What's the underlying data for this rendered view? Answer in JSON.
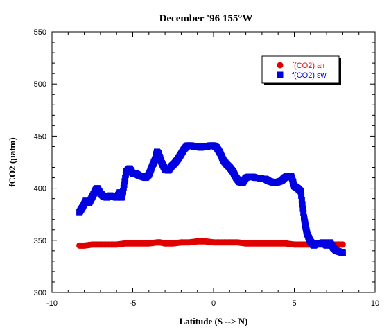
{
  "chart_data": {
    "type": "scatter",
    "title": "December '96 155°W",
    "xlabel": "Latitude (S --> N)",
    "ylabel": "fCO2 (µatm)",
    "xlim": [
      -10,
      10
    ],
    "ylim": [
      300,
      550
    ],
    "xticks": [
      "-10",
      "-5",
      "0",
      "5",
      "10"
    ],
    "yticks": [
      "300",
      "350",
      "400",
      "450",
      "500",
      "550"
    ],
    "legend_position": "top-right",
    "grid": false,
    "series": [
      {
        "name": "f(CO2) air",
        "marker": "circle",
        "color": "#e00000",
        "x": [
          -8.3,
          -8.0,
          -7.5,
          -7.0,
          -6.5,
          -6.0,
          -5.5,
          -5.0,
          -4.5,
          -4.0,
          -3.5,
          -3.3,
          -3.0,
          -2.5,
          -2.0,
          -1.5,
          -1.0,
          -0.5,
          0.0,
          0.5,
          1.0,
          1.5,
          2.0,
          2.5,
          3.0,
          3.5,
          4.0,
          4.5,
          5.0,
          5.5,
          6.0,
          6.5,
          7.0,
          7.5,
          8.0
        ],
        "y": [
          345,
          345,
          346,
          346,
          346,
          346,
          347,
          347,
          347,
          347,
          348,
          348,
          347,
          347,
          348,
          348,
          349,
          349,
          348,
          348,
          348,
          348,
          347,
          347,
          347,
          347,
          347,
          347,
          346,
          346,
          346,
          346,
          346,
          346,
          346
        ]
      },
      {
        "name": "f(CO2) sw",
        "marker": "square",
        "color": "#0000e0",
        "x": [
          -8.3,
          -8.1,
          -7.9,
          -7.7,
          -7.5,
          -7.3,
          -7.2,
          -7.0,
          -6.8,
          -6.6,
          -6.4,
          -6.2,
          -6.0,
          -5.8,
          -5.7,
          -5.6,
          -5.4,
          -5.2,
          -5.0,
          -4.8,
          -4.6,
          -4.4,
          -4.2,
          -4.0,
          -3.8,
          -3.6,
          -3.5,
          -3.4,
          -3.2,
          -3.0,
          -2.8,
          -2.6,
          -2.4,
          -2.2,
          -2.0,
          -1.8,
          -1.6,
          -1.4,
          -1.2,
          -1.0,
          -0.8,
          -0.6,
          -0.4,
          -0.2,
          0.0,
          0.2,
          0.4,
          0.6,
          0.8,
          1.0,
          1.2,
          1.4,
          1.6,
          1.8,
          2.0,
          2.2,
          2.4,
          2.6,
          2.8,
          3.0,
          3.2,
          3.4,
          3.6,
          3.8,
          4.0,
          4.2,
          4.4,
          4.6,
          4.8,
          5.0,
          5.2,
          5.4,
          5.6,
          5.7,
          5.8,
          6.0,
          6.2,
          6.4,
          6.6,
          6.8,
          7.0,
          7.2,
          7.4,
          7.6,
          7.8,
          8.0
        ],
        "y": [
          377,
          382,
          388,
          386,
          392,
          398,
          400,
          395,
          392,
          391,
          393,
          392,
          391,
          396,
          391,
          397,
          416,
          419,
          414,
          414,
          412,
          411,
          410,
          413,
          421,
          428,
          435,
          433,
          424,
          418,
          417,
          421,
          424,
          428,
          433,
          438,
          441,
          441,
          440,
          440,
          439,
          440,
          440,
          441,
          441,
          439,
          434,
          427,
          423,
          420,
          416,
          410,
          406,
          405,
          410,
          411,
          411,
          410,
          410,
          409,
          409,
          407,
          406,
          405,
          406,
          407,
          410,
          412,
          412,
          402,
          400,
          397,
          372,
          363,
          356,
          349,
          345,
          347,
          347,
          348,
          345,
          348,
          343,
          340,
          339,
          338
        ]
      }
    ]
  }
}
